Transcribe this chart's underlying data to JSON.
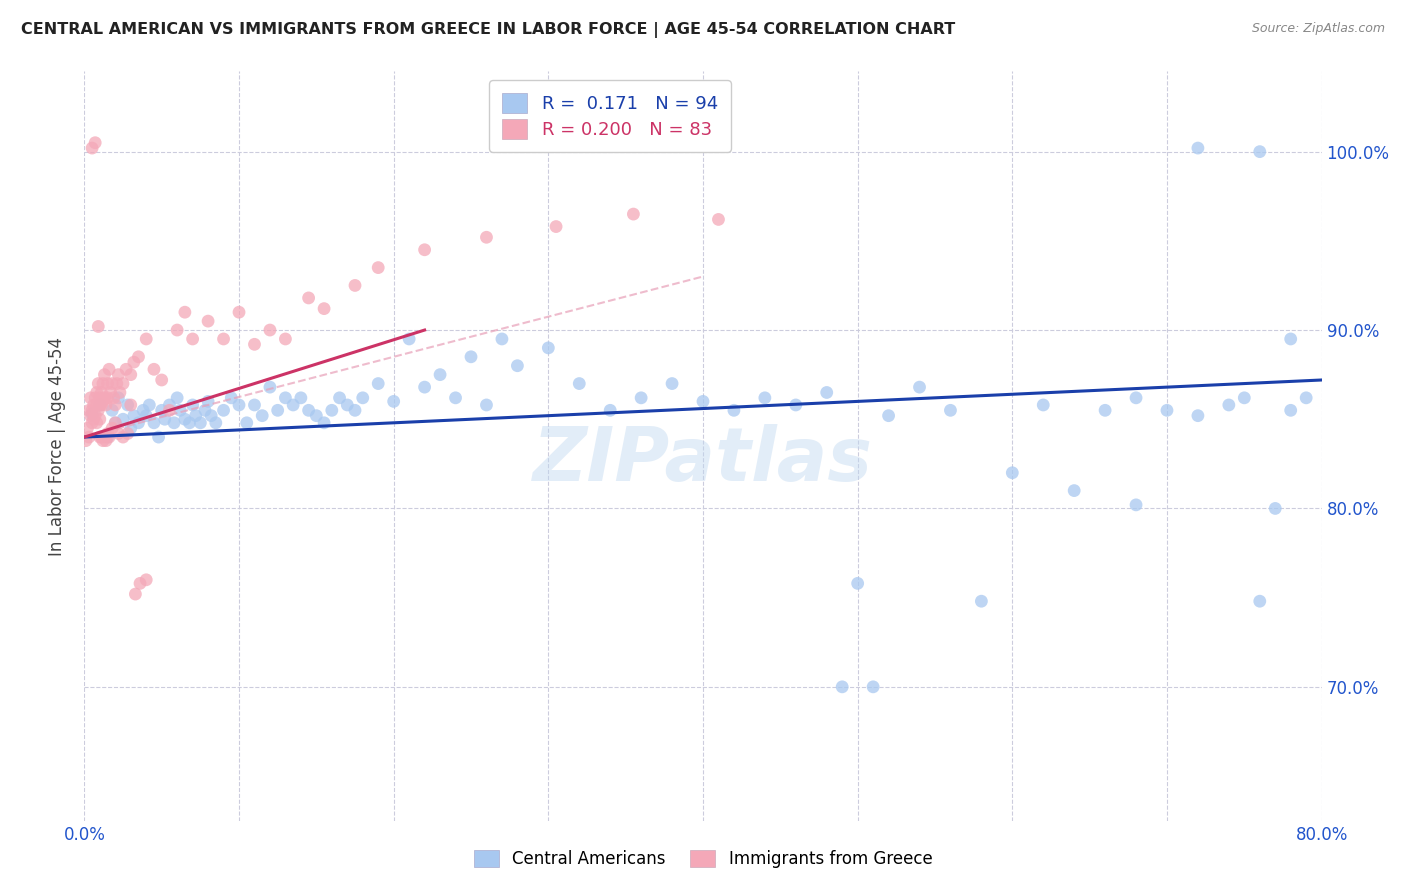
{
  "title": "CENTRAL AMERICAN VS IMMIGRANTS FROM GREECE IN LABOR FORCE | AGE 45-54 CORRELATION CHART",
  "source": "Source: ZipAtlas.com",
  "ylabel": "In Labor Force | Age 45-54",
  "xlim": [
    0.0,
    0.8
  ],
  "ylim": [
    0.625,
    1.045
  ],
  "yticks_right": [
    0.7,
    0.8,
    0.9,
    1.0
  ],
  "yticklabels_right": [
    "70.0%",
    "80.0%",
    "90.0%",
    "100.0%"
  ],
  "blue_R": "0.171",
  "blue_N": "94",
  "pink_R": "0.200",
  "pink_N": "83",
  "blue_color": "#a8c8f0",
  "pink_color": "#f4a8b8",
  "blue_line_color": "#1a3faa",
  "pink_line_color": "#cc3366",
  "pink_dash_color": "#e8a0b8",
  "watermark": "ZIPatlas",
  "legend_label_blue": "Central Americans",
  "legend_label_pink": "Immigrants from Greece",
  "blue_points_x": [
    0.005,
    0.01,
    0.015,
    0.018,
    0.02,
    0.022,
    0.025,
    0.028,
    0.03,
    0.032,
    0.035,
    0.038,
    0.04,
    0.042,
    0.045,
    0.048,
    0.05,
    0.052,
    0.055,
    0.058,
    0.06,
    0.062,
    0.065,
    0.068,
    0.07,
    0.072,
    0.075,
    0.078,
    0.08,
    0.082,
    0.085,
    0.09,
    0.095,
    0.1,
    0.105,
    0.11,
    0.115,
    0.12,
    0.125,
    0.13,
    0.135,
    0.14,
    0.145,
    0.15,
    0.155,
    0.16,
    0.165,
    0.17,
    0.175,
    0.18,
    0.19,
    0.2,
    0.21,
    0.22,
    0.23,
    0.24,
    0.25,
    0.26,
    0.27,
    0.28,
    0.3,
    0.32,
    0.34,
    0.36,
    0.38,
    0.4,
    0.42,
    0.44,
    0.46,
    0.48,
    0.5,
    0.52,
    0.54,
    0.56,
    0.58,
    0.6,
    0.62,
    0.64,
    0.66,
    0.68,
    0.7,
    0.72,
    0.74,
    0.75,
    0.76,
    0.77,
    0.78,
    0.79,
    0.68,
    0.72,
    0.76,
    0.78,
    0.49,
    0.51
  ],
  "blue_points_y": [
    0.853,
    0.858,
    0.84,
    0.855,
    0.848,
    0.862,
    0.85,
    0.858,
    0.845,
    0.852,
    0.848,
    0.855,
    0.852,
    0.858,
    0.848,
    0.84,
    0.855,
    0.85,
    0.858,
    0.848,
    0.862,
    0.855,
    0.85,
    0.848,
    0.858,
    0.852,
    0.848,
    0.855,
    0.86,
    0.852,
    0.848,
    0.855,
    0.862,
    0.858,
    0.848,
    0.858,
    0.852,
    0.868,
    0.855,
    0.862,
    0.858,
    0.862,
    0.855,
    0.852,
    0.848,
    0.855,
    0.862,
    0.858,
    0.855,
    0.862,
    0.87,
    0.86,
    0.895,
    0.868,
    0.875,
    0.862,
    0.885,
    0.858,
    0.895,
    0.88,
    0.89,
    0.87,
    0.855,
    0.862,
    0.87,
    0.86,
    0.855,
    0.862,
    0.858,
    0.865,
    0.758,
    0.852,
    0.868,
    0.855,
    0.748,
    0.82,
    0.858,
    0.81,
    0.855,
    0.862,
    0.855,
    0.852,
    0.858,
    0.862,
    0.748,
    0.8,
    0.855,
    0.862,
    0.802,
    1.002,
    1.0,
    0.895,
    0.7,
    0.7
  ],
  "pink_points_x": [
    0.001,
    0.002,
    0.003,
    0.003,
    0.004,
    0.004,
    0.005,
    0.005,
    0.006,
    0.006,
    0.007,
    0.007,
    0.008,
    0.008,
    0.008,
    0.009,
    0.009,
    0.01,
    0.01,
    0.01,
    0.011,
    0.011,
    0.012,
    0.012,
    0.013,
    0.013,
    0.014,
    0.015,
    0.015,
    0.016,
    0.017,
    0.018,
    0.019,
    0.02,
    0.021,
    0.022,
    0.023,
    0.025,
    0.027,
    0.03,
    0.032,
    0.035,
    0.04,
    0.045,
    0.05,
    0.055,
    0.06,
    0.065,
    0.07,
    0.08,
    0.09,
    0.1,
    0.11,
    0.12,
    0.13,
    0.145,
    0.155,
    0.175,
    0.19,
    0.22,
    0.26,
    0.305,
    0.355,
    0.41,
    0.005,
    0.007,
    0.009,
    0.01,
    0.011,
    0.012,
    0.013,
    0.014,
    0.015,
    0.016,
    0.018,
    0.02,
    0.022,
    0.025,
    0.028,
    0.03,
    0.033,
    0.036,
    0.04
  ],
  "pink_points_y": [
    0.838,
    0.845,
    0.855,
    0.84,
    0.852,
    0.862,
    0.848,
    0.855,
    0.85,
    0.858,
    0.852,
    0.862,
    0.858,
    0.865,
    0.848,
    0.855,
    0.87,
    0.858,
    0.862,
    0.85,
    0.858,
    0.865,
    0.87,
    0.86,
    0.875,
    0.862,
    0.858,
    0.87,
    0.862,
    0.878,
    0.865,
    0.87,
    0.862,
    0.858,
    0.87,
    0.875,
    0.865,
    0.87,
    0.878,
    0.875,
    0.882,
    0.885,
    0.895,
    0.878,
    0.872,
    0.855,
    0.9,
    0.91,
    0.895,
    0.905,
    0.895,
    0.91,
    0.892,
    0.9,
    0.895,
    0.918,
    0.912,
    0.925,
    0.935,
    0.945,
    0.952,
    0.958,
    0.965,
    0.962,
    1.002,
    1.005,
    0.902,
    0.84,
    0.84,
    0.838,
    0.84,
    0.838,
    0.842,
    0.84,
    0.845,
    0.848,
    0.842,
    0.84,
    0.842,
    0.858,
    0.752,
    0.758,
    0.76
  ]
}
